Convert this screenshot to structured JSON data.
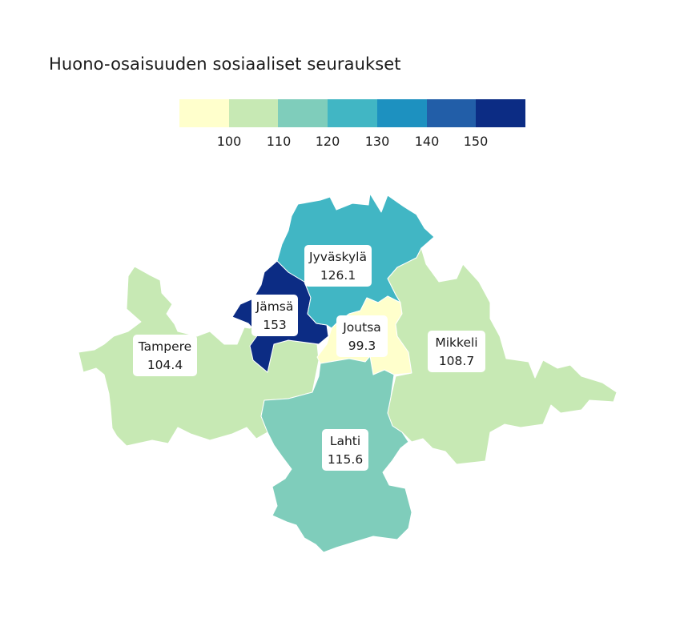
{
  "title": "Huono-osaisuuden sosiaaliset seuraukset",
  "legend": {
    "colors": [
      "#ffffcc",
      "#c7e9b4",
      "#7fcdbb",
      "#41b6c4",
      "#1d91c0",
      "#225ea8",
      "#0c2c84"
    ],
    "ticks": [
      "100",
      "110",
      "120",
      "130",
      "140",
      "150"
    ]
  },
  "regions": {
    "tampere": {
      "name": "Tampere",
      "value": "104.4",
      "color": "#c7e9b4"
    },
    "jamsa": {
      "name": "Jämsä",
      "value": "153",
      "color": "#0c2c84"
    },
    "jyvaskyla": {
      "name": "Jyväskylä",
      "value": "126.1",
      "color": "#41b6c4"
    },
    "joutsa": {
      "name": "Joutsa",
      "value": "99.3",
      "color": "#ffffcc"
    },
    "mikkeli": {
      "name": "Mikkeli",
      "value": "108.7",
      "color": "#c7e9b4"
    },
    "lahti": {
      "name": "Lahti",
      "value": "115.6",
      "color": "#7fcdbb"
    }
  }
}
